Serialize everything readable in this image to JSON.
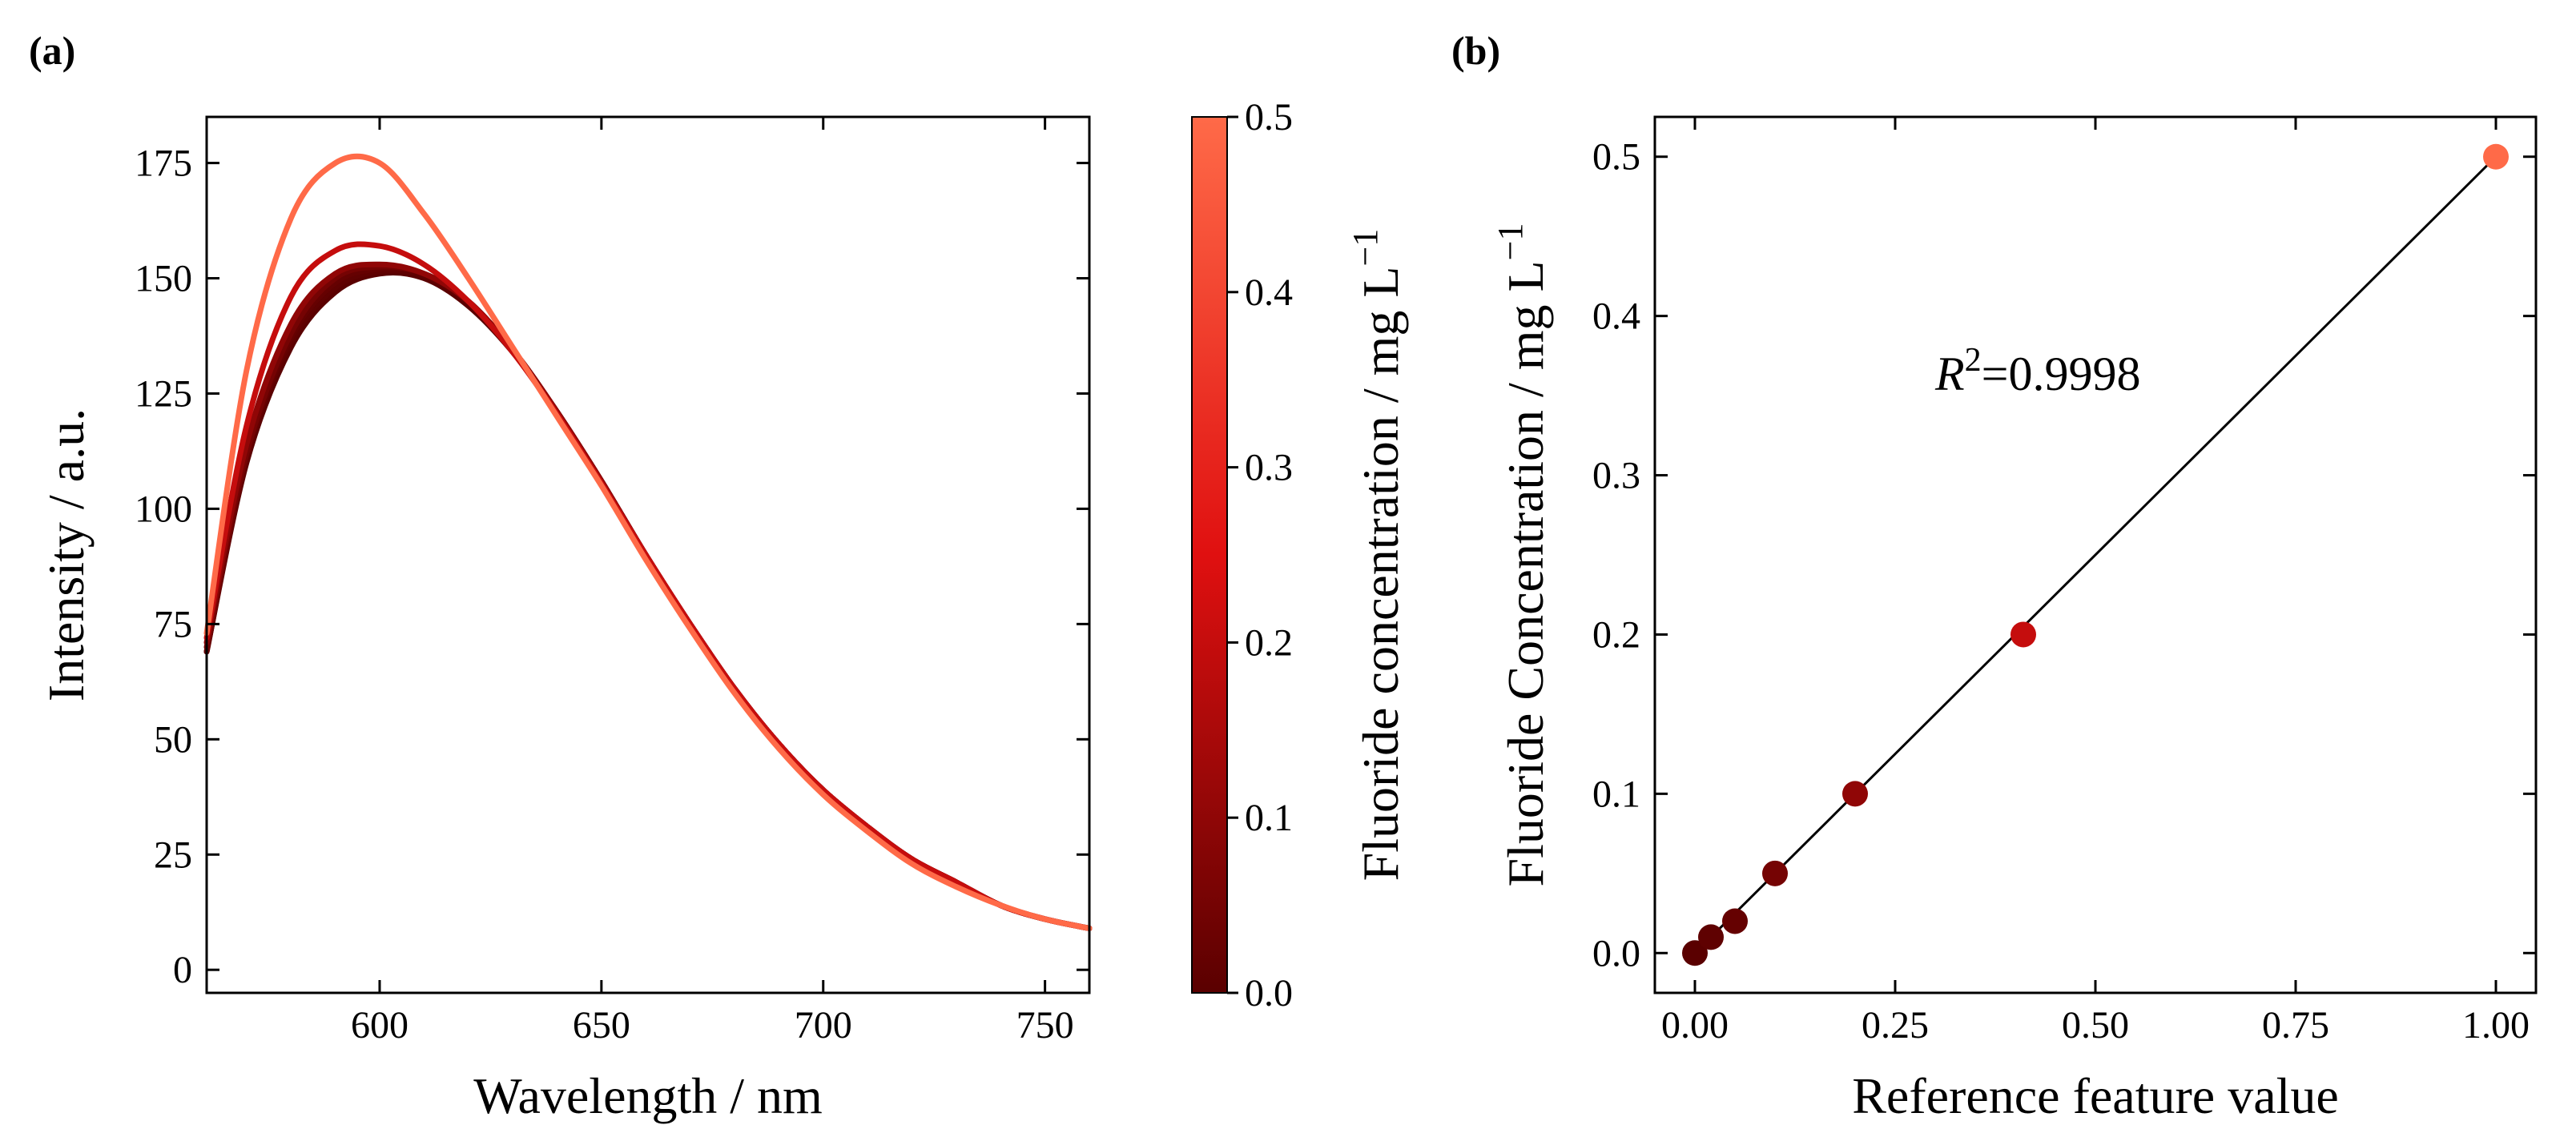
{
  "panel_labels": {
    "a": "(a)",
    "b": "(b)"
  },
  "colors": {
    "axis": "#000000",
    "cmap_low": "#5a0000",
    "cmap_mid": "#e01010",
    "cmap_high": "#ff6a48",
    "fit_line": "#000000"
  },
  "chart_data": [
    {
      "id": "a",
      "type": "line",
      "title": "",
      "xlabel": "Wavelength / nm",
      "ylabel": "Intensity / a.u.",
      "xlim": [
        561,
        760
      ],
      "ylim": [
        -5,
        185
      ],
      "xticks": [
        600,
        650,
        700,
        750
      ],
      "xtick_labels": [
        "600",
        "650",
        "700",
        "750"
      ],
      "yticks": [
        0,
        25,
        50,
        75,
        100,
        125,
        150,
        175
      ],
      "ytick_labels": [
        "0",
        "25",
        "50",
        "75",
        "100",
        "125",
        "150",
        "175"
      ],
      "grid": false,
      "x": [
        561,
        570,
        580,
        590,
        600,
        610,
        620,
        630,
        640,
        650,
        660,
        670,
        680,
        690,
        700,
        710,
        720,
        730,
        740,
        750,
        760
      ],
      "series": [
        {
          "name": "0.00",
          "concentration": 0.0,
          "values": [
            69,
            110,
            135,
            147,
            151,
            150,
            144,
            134,
            121,
            106,
            90,
            75,
            61,
            49,
            39,
            31,
            24,
            19,
            14,
            11,
            9
          ]
        },
        {
          "name": "0.01",
          "concentration": 0.01,
          "values": [
            69,
            111,
            136,
            148,
            151.5,
            150.5,
            144.5,
            134.5,
            121,
            106,
            90,
            75,
            61,
            49,
            39,
            31,
            24,
            19,
            14,
            11,
            9
          ]
        },
        {
          "name": "0.02",
          "concentration": 0.02,
          "values": [
            69,
            111,
            137,
            149,
            152,
            151,
            145,
            134.5,
            121,
            106,
            90,
            75,
            61,
            49,
            39,
            31,
            24,
            19,
            14,
            11,
            9
          ]
        },
        {
          "name": "0.05",
          "concentration": 0.05,
          "values": [
            70,
            112,
            138,
            150,
            152.5,
            151,
            145,
            134.5,
            121,
            106,
            90,
            75,
            61,
            49,
            39,
            31,
            24,
            19,
            14,
            11,
            9
          ]
        },
        {
          "name": "0.10",
          "concentration": 0.1,
          "values": [
            71,
            114,
            140,
            151,
            153,
            151,
            145,
            134.5,
            121,
            106,
            90,
            75,
            61,
            49,
            39,
            31,
            24,
            19,
            14,
            11,
            9
          ]
        },
        {
          "name": "0.20",
          "concentration": 0.2,
          "values": [
            72,
            118,
            146,
            156,
            157,
            153,
            145,
            134,
            120.5,
            105.5,
            90,
            75,
            61,
            49,
            39,
            31,
            24,
            19,
            14,
            11,
            9
          ]
        },
        {
          "name": "0.50",
          "concentration": 0.5,
          "values": [
            73,
            130,
            163,
            175,
            175,
            164,
            150,
            135,
            120,
            105,
            89,
            74,
            60,
            48,
            38,
            30,
            23,
            18,
            14,
            11,
            9
          ]
        }
      ],
      "colorbar": {
        "label": "Fluoride concentration / mg L",
        "label_superscript": "−1",
        "range": [
          0,
          0.5
        ],
        "ticks": [
          0,
          0.1,
          0.2,
          0.3,
          0.4,
          0.5
        ],
        "tick_labels": [
          "0.0",
          "0.1",
          "0.2",
          "0.3",
          "0.4",
          "0.5"
        ]
      }
    },
    {
      "id": "b",
      "type": "scatter",
      "title": "",
      "xlabel": "Reference feature value",
      "ylabel": "Fluoride Concentration / mg L",
      "ylabel_superscript": "−1",
      "xlim": [
        -0.05,
        1.05
      ],
      "ylim": [
        -0.025,
        0.525
      ],
      "xticks": [
        0,
        0.25,
        0.5,
        0.75,
        1.0
      ],
      "xtick_labels": [
        "0.00",
        "0.25",
        "0.50",
        "0.75",
        "1.00"
      ],
      "yticks": [
        0,
        0.1,
        0.2,
        0.3,
        0.4,
        0.5
      ],
      "ytick_labels": [
        "0.0",
        "0.1",
        "0.2",
        "0.3",
        "0.4",
        "0.5"
      ],
      "grid": false,
      "points": [
        {
          "x": 0.0,
          "y": 0.0
        },
        {
          "x": 0.02,
          "y": 0.01
        },
        {
          "x": 0.05,
          "y": 0.02
        },
        {
          "x": 0.1,
          "y": 0.05
        },
        {
          "x": 0.2,
          "y": 0.1
        },
        {
          "x": 0.41,
          "y": 0.2
        },
        {
          "x": 1.0,
          "y": 0.5
        }
      ],
      "fit_line": {
        "x": [
          0.0,
          1.0
        ],
        "y": [
          0.0,
          0.5
        ]
      },
      "annotation": {
        "prefix": "R",
        "superscript": "2",
        "text": "=0.9998"
      }
    }
  ]
}
